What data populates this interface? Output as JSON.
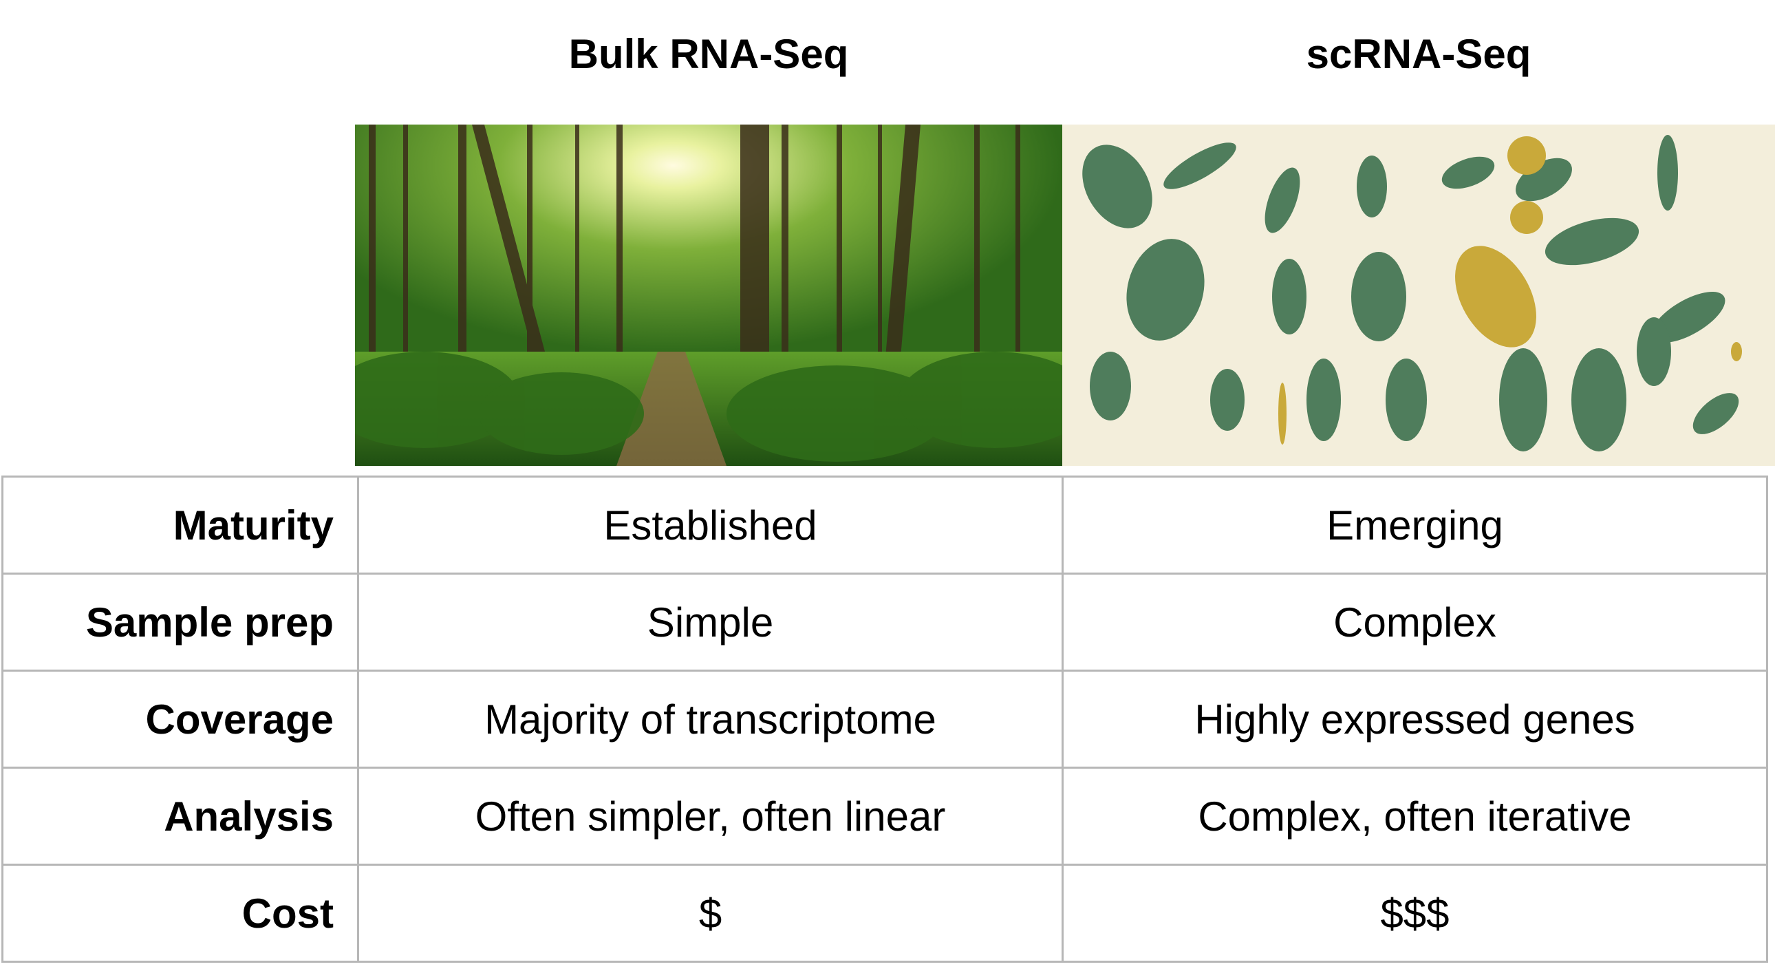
{
  "columns": [
    {
      "title": "Bulk RNA-Seq",
      "image": "forest-photo"
    },
    {
      "title": "scRNA-Seq",
      "image": "leaf-illustration-collage"
    }
  ],
  "rows": [
    {
      "label": "Maturity",
      "bulk": "Established",
      "sc": "Emerging"
    },
    {
      "label": "Sample prep",
      "bulk": "Simple",
      "sc": "Complex"
    },
    {
      "label": "Coverage",
      "bulk": "Majority of transcriptome",
      "sc": "Highly expressed genes"
    },
    {
      "label": "Analysis",
      "bulk": "Often simpler, often linear",
      "sc": "Complex, often iterative"
    },
    {
      "label": "Cost",
      "bulk": "$",
      "sc": "$$$"
    }
  ],
  "colors": {
    "border": "#b7b7b7",
    "forest": "#3f7d1e",
    "leaf": "#4f7d5c",
    "leaf_gold": "#c9a93a",
    "paper": "#f3eedb"
  }
}
